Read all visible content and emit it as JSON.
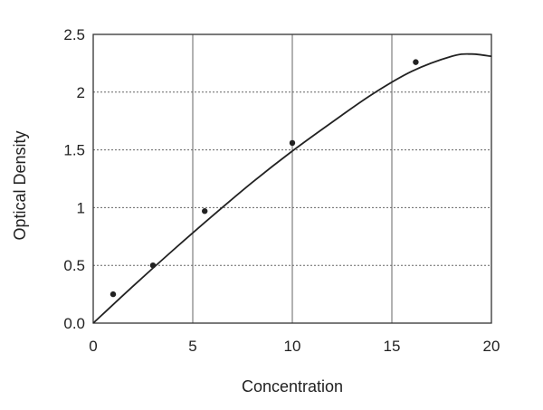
{
  "chart_data": {
    "type": "scatter",
    "title": "",
    "xlabel": "Concentration",
    "ylabel": "Optical Density",
    "xlim": [
      0,
      20
    ],
    "ylim": [
      0,
      2.5
    ],
    "x_ticks": [
      0,
      5,
      10,
      15,
      20
    ],
    "x_tick_labels": [
      "0",
      "5",
      "10",
      "15",
      "20"
    ],
    "y_ticks": [
      0,
      0.5,
      1,
      1.5,
      2,
      2.5
    ],
    "y_tick_labels": [
      "0.0",
      "0.5",
      "1",
      "1.5",
      "2",
      "2.5"
    ],
    "grid": {
      "vertical": "solid",
      "horizontal": "dotted"
    },
    "legend": "none",
    "series": [
      {
        "type": "scatter",
        "x": [
          1,
          3,
          5.6,
          10,
          16.2
        ],
        "y": [
          0.25,
          0.5,
          0.97,
          1.56,
          2.26
        ]
      },
      {
        "type": "line",
        "x": [
          0,
          2,
          4,
          6,
          8,
          10,
          12,
          14,
          16,
          18,
          19,
          20
        ],
        "y": [
          0,
          0.32,
          0.63,
          0.93,
          1.22,
          1.49,
          1.74,
          1.98,
          2.18,
          2.31,
          2.33,
          2.31
        ]
      }
    ],
    "colors": {
      "marks": "#222222",
      "grid": "#666666",
      "frame": "#333333"
    }
  }
}
